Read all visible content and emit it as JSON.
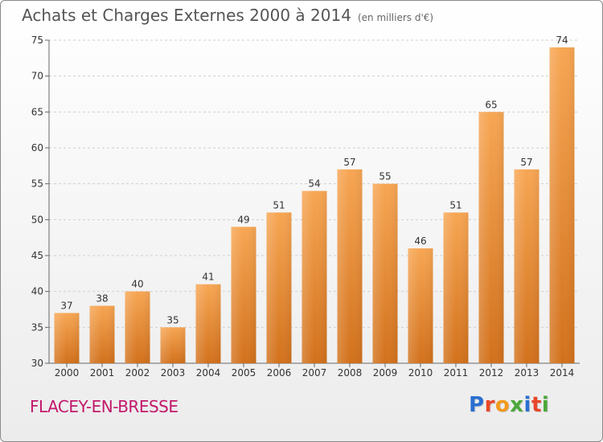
{
  "header": {
    "title": "Achats et Charges Externes 2000 à 2014",
    "subtitle": "(en milliers d'€)"
  },
  "footer": {
    "town": "FLACEY-EN-BRESSE",
    "logo": "Proxiti",
    "logo_colors": [
      "#2a6fd1",
      "#e8472a",
      "#f29a1c",
      "#4aa83a",
      "#2a6fd1",
      "#e8472a",
      "#4aa83a"
    ]
  },
  "chart_data": {
    "type": "bar",
    "title": "Achats et Charges Externes 2000 à 2014",
    "subtitle": "(en milliers d'€)",
    "categories": [
      "2000",
      "2001",
      "2002",
      "2003",
      "2004",
      "2005",
      "2006",
      "2007",
      "2008",
      "2009",
      "2010",
      "2011",
      "2012",
      "2013",
      "2014"
    ],
    "values": [
      37,
      38,
      40,
      35,
      41,
      49,
      51,
      54,
      57,
      55,
      46,
      51,
      65,
      57,
      74
    ],
    "ylim": [
      30,
      75
    ],
    "yticks": [
      30,
      35,
      40,
      45,
      50,
      55,
      60,
      65,
      70,
      75
    ],
    "grid": true,
    "bar_color_top": "#f7a653",
    "bar_color_bottom": "#d2711c"
  }
}
